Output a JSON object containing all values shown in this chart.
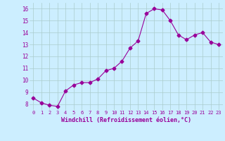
{
  "x": [
    0,
    1,
    2,
    3,
    4,
    5,
    6,
    7,
    8,
    9,
    10,
    11,
    12,
    13,
    14,
    15,
    16,
    17,
    18,
    19,
    20,
    21,
    22,
    23
  ],
  "y": [
    8.5,
    8.1,
    7.9,
    7.8,
    9.1,
    9.6,
    9.8,
    9.8,
    10.1,
    10.8,
    11.0,
    11.6,
    12.7,
    13.3,
    15.6,
    16.0,
    15.9,
    15.0,
    13.8,
    13.4,
    13.8,
    14.0,
    13.2,
    13.0
  ],
  "line_color": "#990099",
  "marker": "D",
  "marker_size": 2.5,
  "bg_color": "#cceeff",
  "grid_color": "#aacccc",
  "xlabel": "Windchill (Refroidissement éolien,°C)",
  "xlabel_color": "#990099",
  "tick_color": "#990099",
  "ylim": [
    7.5,
    16.5
  ],
  "xlim": [
    -0.5,
    23.5
  ],
  "yticks": [
    8,
    9,
    10,
    11,
    12,
    13,
    14,
    15,
    16
  ],
  "xticks": [
    0,
    1,
    2,
    3,
    4,
    5,
    6,
    7,
    8,
    9,
    10,
    11,
    12,
    13,
    14,
    15,
    16,
    17,
    18,
    19,
    20,
    21,
    22,
    23
  ]
}
